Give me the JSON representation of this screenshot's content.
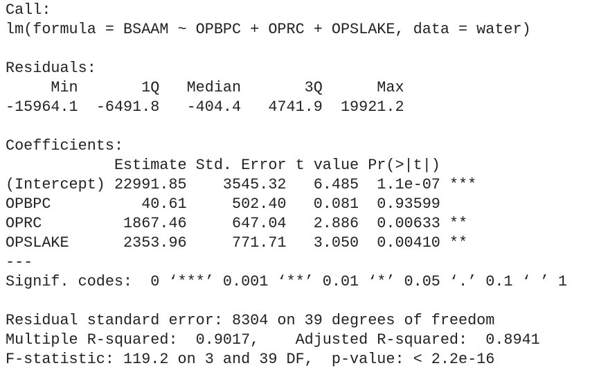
{
  "console": {
    "blocks": [
      {
        "lines": [
          "Call:",
          "lm(formula = BSAAM ~ OPBPC + OPRC + OPSLAKE, data = water)"
        ]
      },
      {
        "lines": [
          "Residuals:",
          "     Min       1Q   Median       3Q      Max",
          "-15964.1  -6491.8   -404.4   4741.9  19921.2"
        ]
      },
      {
        "lines": [
          "Coefficients:",
          "            Estimate Std. Error t value Pr(>|t|)",
          "(Intercept) 22991.85    3545.32   6.485  1.1e-07 ***",
          "OPBPC          40.61     502.40   0.081  0.93599",
          "OPRC         1867.46     647.04   2.886  0.00633 **",
          "OPSLAKE      2353.96     771.71   3.050  0.00410 **",
          "---",
          "Signif. codes:  0 ‘***’ 0.001 ‘**’ 0.01 ‘*’ 0.05 ‘.’ 0.1 ‘ ’ 1"
        ]
      },
      {
        "lines": [
          "Residual standard error: 8304 on 39 degrees of freedom",
          "Multiple R-squared:  0.9017,    Adjusted R-squared:  0.8941",
          "F-statistic: 119.2 on 3 and 39 DF,  p-value: < 2.2e-16"
        ]
      }
    ]
  }
}
